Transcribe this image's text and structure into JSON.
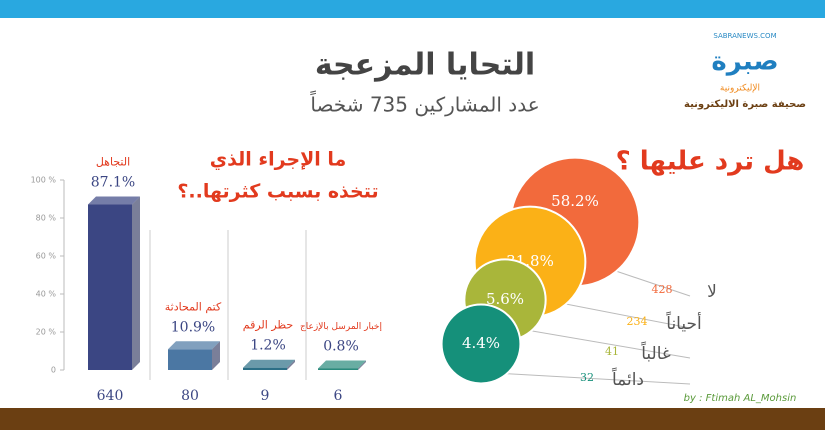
{
  "header": {
    "title": "التحايا المزعجة",
    "subtitle": "عدد المشاركين 735 شخصاً",
    "logo_site": "SABRANEWS.COM",
    "logo_name": "صبرة",
    "logo_tag": "الإليكترونية",
    "logo_caption": "صحيفة صبرة الاليكترونية",
    "credit": "by : Ftimah AL_Mohsin"
  },
  "chart_data": [
    {
      "type": "bar3d",
      "title_lines": [
        "ما الإجراء الذي",
        "تتخذه بسبب كثرتها..؟"
      ],
      "categories": [
        "التجاهل",
        "كتم المحادثة",
        "حظر الرقم",
        "إخبار المرسل بالإزعاج"
      ],
      "values": [
        87.1,
        10.9,
        1.2,
        0.8
      ],
      "value_labels": [
        "87.1%",
        "10.9%",
        "1.2%",
        "0.8%"
      ],
      "counts": [
        640,
        80,
        9,
        6
      ],
      "colors": [
        "#3b4683",
        "#4b77a3",
        "#2c6f86",
        "#2a8a7c"
      ],
      "ylim": [
        0,
        100
      ],
      "yticks": [
        0,
        {
          "value": 20,
          "label": "20 %"
        },
        {
          "value": 40,
          "label": "40 %"
        },
        {
          "value": 60,
          "label": "60 %"
        },
        {
          "value": 80,
          "label": "80 %"
        },
        {
          "value": 100,
          "label": "100 %"
        }
      ]
    },
    {
      "type": "bubble",
      "title": "هل ترد عليها ؟",
      "categories": [
        "لا",
        "أحياناً",
        "غالباً",
        "دائماً"
      ],
      "values": [
        58.2,
        31.8,
        5.6,
        4.4
      ],
      "value_labels": [
        "58.2%",
        "31.8%",
        "5.6%",
        "4.4%"
      ],
      "counts": [
        428,
        234,
        41,
        32
      ],
      "colors": [
        "#f26a3c",
        "#fbb117",
        "#a9b63a",
        "#15907a"
      ]
    }
  ]
}
